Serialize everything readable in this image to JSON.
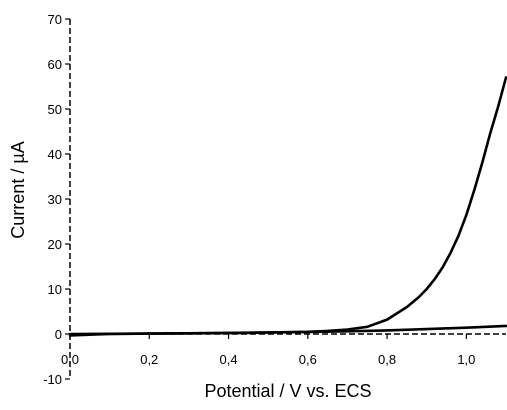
{
  "chart_data": {
    "type": "line",
    "xlabel": "Potential / V vs. ECS",
    "ylabel": "Current / µA",
    "xlim": [
      0.0,
      1.1
    ],
    "ylim": [
      -10,
      70
    ],
    "x_ticks": [
      0.0,
      0.2,
      0.4,
      0.6,
      0.8,
      1.0
    ],
    "x_tick_labels": [
      "0,0",
      "0,2",
      "0,4",
      "0,6",
      "0,8",
      "1,0"
    ],
    "y_ticks": [
      -10,
      0,
      10,
      20,
      30,
      40,
      50,
      60,
      70
    ],
    "y_tick_labels": [
      "-10",
      "0",
      "10",
      "20",
      "30",
      "40",
      "50",
      "60",
      "70"
    ],
    "grid": false,
    "legend": "none",
    "series": [
      {
        "x": [
          0.0,
          0.1,
          0.2,
          0.3,
          0.4,
          0.5,
          0.55,
          0.6,
          0.65,
          0.7,
          0.75,
          0.8,
          0.85,
          0.88,
          0.9,
          0.92,
          0.94,
          0.96,
          0.98,
          1.0,
          1.02,
          1.04,
          1.06,
          1.08,
          1.1
        ],
        "y": [
          0.0,
          0.05,
          0.1,
          0.15,
          0.2,
          0.3,
          0.4,
          0.5,
          0.7,
          1.0,
          1.6,
          3.2,
          6.0,
          8.2,
          10.0,
          12.2,
          14.8,
          18.0,
          21.8,
          26.5,
          32.0,
          38.0,
          44.5,
          50.5,
          57.0
        ]
      },
      {
        "x": [
          1.1,
          1.0,
          0.9,
          0.8,
          0.7,
          0.6,
          0.5,
          0.4,
          0.3,
          0.2,
          0.1,
          0.0
        ],
        "y": [
          1.8,
          1.4,
          1.1,
          0.8,
          0.6,
          0.45,
          0.35,
          0.25,
          0.15,
          0.1,
          0.0,
          -0.3
        ]
      }
    ]
  }
}
